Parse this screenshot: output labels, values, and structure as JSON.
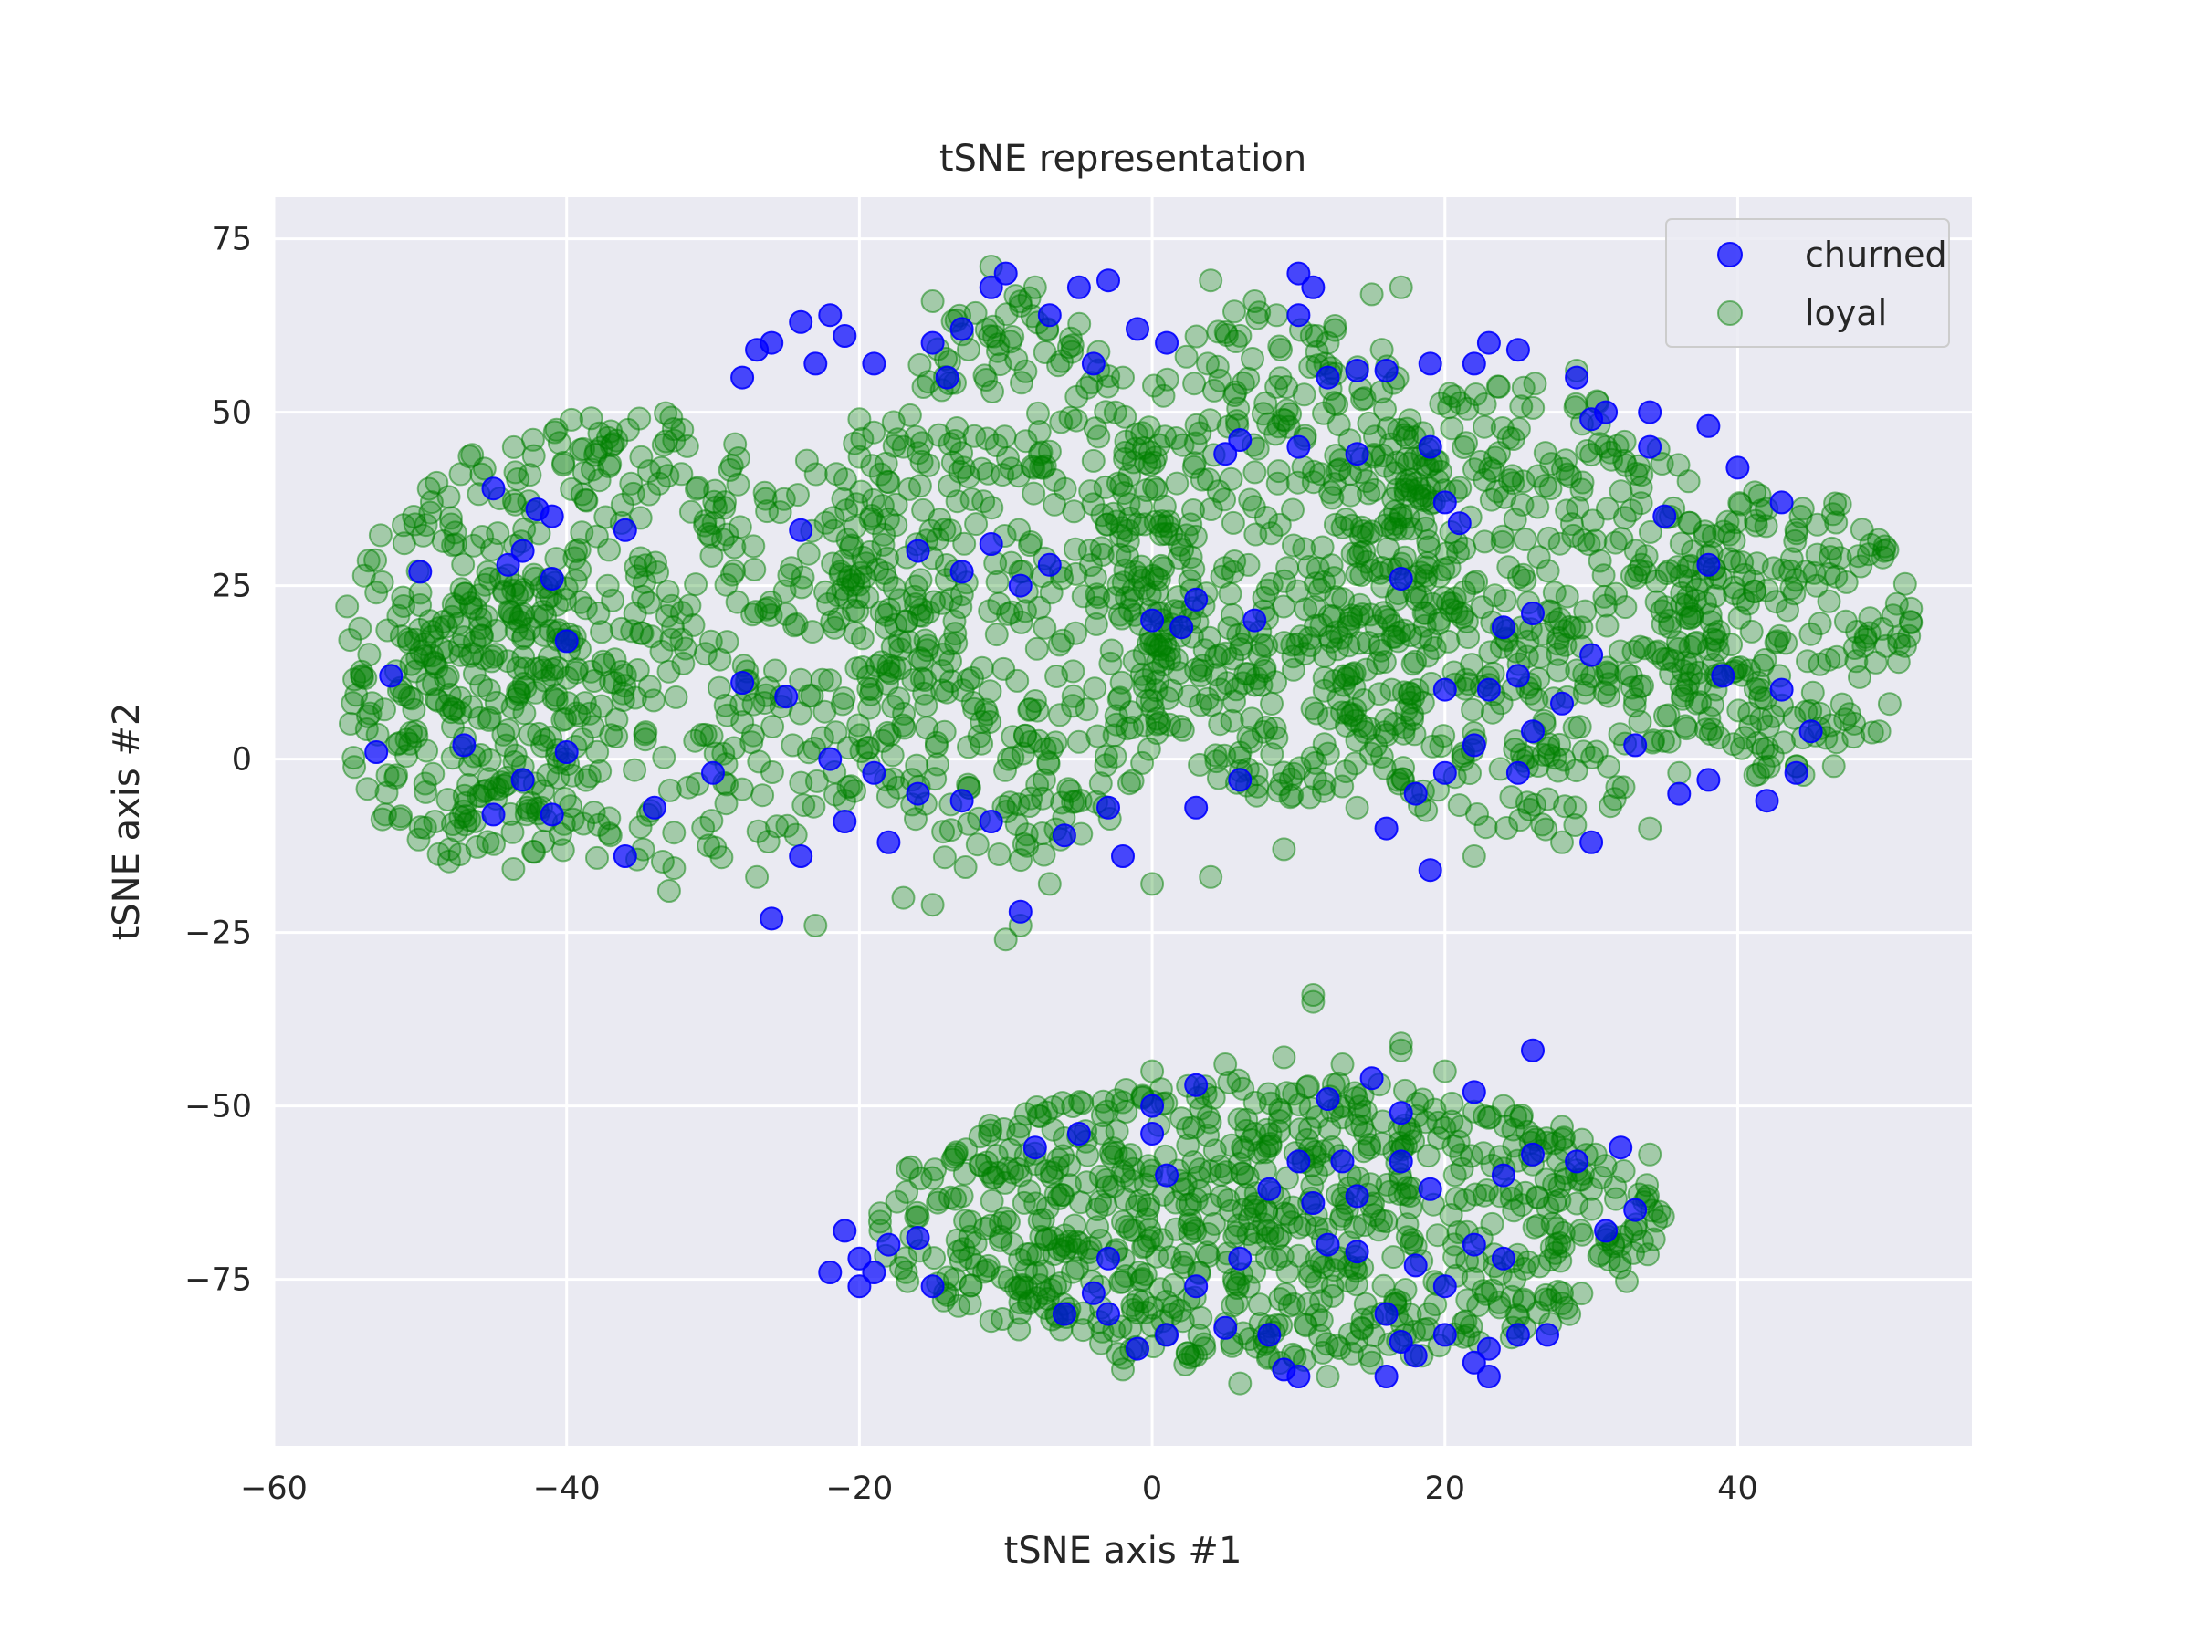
{
  "chart_data": {
    "type": "scatter",
    "title": "tSNE representation",
    "xlabel": "tSNE axis #1",
    "ylabel": "tSNE axis #2",
    "xlim": [
      -60,
      56
    ],
    "ylim": [
      -99,
      81
    ],
    "xticks": [
      -60,
      -40,
      -20,
      0,
      20,
      40
    ],
    "xtick_labels": [
      "−60",
      "−40",
      "−20",
      "0",
      "20",
      "40"
    ],
    "yticks": [
      75,
      50,
      25,
      0,
      -25,
      -50,
      -75
    ],
    "ytick_labels": [
      "75",
      "50",
      "25",
      "0",
      "−25",
      "−50",
      "−75"
    ],
    "grid": true,
    "background": "#eaeaf2",
    "legend_position": "top-right",
    "legend": [
      {
        "label": "churned",
        "color": "#0000ff",
        "alpha": 0.7
      },
      {
        "label": "loyal",
        "color": "#008000",
        "alpha": 0.3
      }
    ],
    "series": [
      {
        "name": "churned",
        "color": "#0000ff",
        "alpha": 0.7,
        "points": [
          [
            -22,
            64
          ],
          [
            -24,
            63
          ],
          [
            -26,
            60
          ],
          [
            -21,
            61
          ],
          [
            -15,
            60
          ],
          [
            -13,
            62
          ],
          [
            -11,
            68
          ],
          [
            -10,
            70
          ],
          [
            -7,
            64
          ],
          [
            -5,
            68
          ],
          [
            -3,
            69
          ],
          [
            -1,
            62
          ],
          [
            1,
            60
          ],
          [
            -4,
            57
          ],
          [
            -14,
            55
          ],
          [
            -19,
            57
          ],
          [
            -23,
            57
          ],
          [
            -27,
            59
          ],
          [
            -28,
            55
          ],
          [
            -24,
            33
          ],
          [
            -16,
            30
          ],
          [
            -13,
            27
          ],
          [
            -11,
            31
          ],
          [
            -9,
            25
          ],
          [
            -7,
            28
          ],
          [
            -45,
            39
          ],
          [
            -42,
            36
          ],
          [
            -41,
            35
          ],
          [
            -44,
            28
          ],
          [
            -41,
            26
          ],
          [
            -36,
            33
          ],
          [
            -40,
            17
          ],
          [
            -50,
            27
          ],
          [
            -43,
            30
          ],
          [
            -53,
            1
          ],
          [
            -52,
            12
          ],
          [
            -47,
            2
          ],
          [
            -43,
            -3
          ],
          [
            -41,
            -8
          ],
          [
            -45,
            -8
          ],
          [
            -40,
            1
          ],
          [
            -36,
            -14
          ],
          [
            -34,
            -7
          ],
          [
            -30,
            -2
          ],
          [
            -28,
            11
          ],
          [
            -25,
            9
          ],
          [
            -22,
            0
          ],
          [
            -19,
            -2
          ],
          [
            -18,
            -12
          ],
          [
            -16,
            -5
          ],
          [
            -13,
            -6
          ],
          [
            -11,
            -9
          ],
          [
            -9,
            -22
          ],
          [
            -6,
            -11
          ],
          [
            -3,
            -7
          ],
          [
            -2,
            -14
          ],
          [
            3,
            -7
          ],
          [
            6,
            -3
          ],
          [
            -26,
            -23
          ],
          [
            -24,
            -14
          ],
          [
            -21,
            -9
          ],
          [
            10,
            70
          ],
          [
            11,
            68
          ],
          [
            10,
            64
          ],
          [
            12,
            55
          ],
          [
            14,
            56
          ],
          [
            16,
            56
          ],
          [
            19,
            57
          ],
          [
            22,
            57
          ],
          [
            23,
            60
          ],
          [
            25,
            59
          ],
          [
            29,
            55
          ],
          [
            30,
            49
          ],
          [
            31,
            50
          ],
          [
            34,
            45
          ],
          [
            34,
            50
          ],
          [
            38,
            48
          ],
          [
            40,
            42
          ],
          [
            43,
            37
          ],
          [
            35,
            35
          ],
          [
            38,
            28
          ],
          [
            39,
            12
          ],
          [
            43,
            10
          ],
          [
            45,
            4
          ],
          [
            44,
            -2
          ],
          [
            42,
            -6
          ],
          [
            38,
            -3
          ],
          [
            36,
            -5
          ],
          [
            33,
            2
          ],
          [
            30,
            15
          ],
          [
            28,
            8
          ],
          [
            26,
            4
          ],
          [
            25,
            -2
          ],
          [
            22,
            2
          ],
          [
            20,
            -2
          ],
          [
            18,
            -5
          ],
          [
            16,
            -10
          ],
          [
            19,
            -16
          ],
          [
            30,
            -12
          ],
          [
            26,
            21
          ],
          [
            24,
            19
          ],
          [
            25,
            12
          ],
          [
            23,
            10
          ],
          [
            20,
            10
          ],
          [
            17,
            26
          ],
          [
            19,
            45
          ],
          [
            21,
            34
          ],
          [
            20,
            37
          ],
          [
            14,
            44
          ],
          [
            10,
            45
          ],
          [
            6,
            46
          ],
          [
            5,
            44
          ],
          [
            3,
            23
          ],
          [
            7,
            20
          ],
          [
            2,
            19
          ],
          [
            0,
            20
          ],
          [
            -21,
            -68
          ],
          [
            -20,
            -72
          ],
          [
            -19,
            -74
          ],
          [
            -20,
            -76
          ],
          [
            -22,
            -74
          ],
          [
            -18,
            -70
          ],
          [
            -16,
            -69
          ],
          [
            -15,
            -76
          ],
          [
            -8,
            -56
          ],
          [
            -5,
            -54
          ],
          [
            -3,
            -72
          ],
          [
            -4,
            -77
          ],
          [
            -6,
            -80
          ],
          [
            0,
            -50
          ],
          [
            0,
            -54
          ],
          [
            1,
            -60
          ],
          [
            3,
            -47
          ],
          [
            8,
            -62
          ],
          [
            10,
            -58
          ],
          [
            11,
            -64
          ],
          [
            13,
            -58
          ],
          [
            14,
            -63
          ],
          [
            15,
            -46
          ],
          [
            12,
            -49
          ],
          [
            17,
            -51
          ],
          [
            17,
            -58
          ],
          [
            19,
            -62
          ],
          [
            22,
            -48
          ],
          [
            24,
            -60
          ],
          [
            26,
            -42
          ],
          [
            26,
            -57
          ],
          [
            29,
            -58
          ],
          [
            32,
            -56
          ],
          [
            33,
            -65
          ],
          [
            31,
            -68
          ],
          [
            24,
            -72
          ],
          [
            22,
            -70
          ],
          [
            20,
            -76
          ],
          [
            18,
            -73
          ],
          [
            16,
            -80
          ],
          [
            17,
            -84
          ],
          [
            18,
            -86
          ],
          [
            20,
            -83
          ],
          [
            22,
            -87
          ],
          [
            23,
            -85
          ],
          [
            25,
            -83
          ],
          [
            27,
            -83
          ],
          [
            23,
            -89
          ],
          [
            16,
            -89
          ],
          [
            10,
            -89
          ],
          [
            9,
            -88
          ],
          [
            8,
            -83
          ],
          [
            5,
            -82
          ],
          [
            3,
            -76
          ],
          [
            1,
            -83
          ],
          [
            -1,
            -85
          ],
          [
            -3,
            -80
          ],
          [
            12,
            -70
          ],
          [
            14,
            -71
          ],
          [
            6,
            -72
          ]
        ]
      },
      {
        "name": "loyal",
        "color": "#008000",
        "alpha": 0.3,
        "regions": [
          {
            "cx": -35,
            "cy": 17,
            "rx": 20,
            "ry": 33,
            "n": 520
          },
          {
            "cx": -10,
            "cy": 25,
            "rx": 12,
            "ry": 42,
            "n": 430
          },
          {
            "cx": 9,
            "cy": 30,
            "rx": 12,
            "ry": 36,
            "n": 420
          },
          {
            "cx": 25,
            "cy": 22,
            "rx": 14,
            "ry": 33,
            "n": 440
          },
          {
            "cx": 43,
            "cy": 18,
            "rx": 9,
            "ry": 21,
            "n": 200
          },
          {
            "cx": -45,
            "cy": 5,
            "rx": 10,
            "ry": 22,
            "n": 150
          },
          {
            "cx": 8,
            "cy": -67,
            "rx": 27,
            "ry": 21,
            "n": 780
          }
        ],
        "points": [
          [
            11,
            -34
          ],
          [
            11,
            -35
          ],
          [
            17,
            -41
          ],
          [
            17,
            -42
          ],
          [
            51,
            14
          ],
          [
            50,
            30
          ],
          [
            -55,
            22
          ],
          [
            -54,
            12
          ],
          [
            -53,
            24
          ],
          [
            -10,
            -26
          ],
          [
            -9,
            -24
          ],
          [
            -23,
            -24
          ],
          [
            12,
            60
          ],
          [
            15,
            67
          ],
          [
            17,
            68
          ],
          [
            4,
            69
          ],
          [
            7,
            66
          ],
          [
            -8,
            68
          ],
          [
            -11,
            71
          ],
          [
            -15,
            66
          ],
          [
            -2,
            55
          ],
          [
            -20,
            49
          ],
          [
            29,
            56
          ],
          [
            31,
            45
          ],
          [
            44,
            33
          ],
          [
            47,
            29
          ],
          [
            48,
            16
          ],
          [
            -48,
            -13
          ],
          [
            -49,
            -9
          ],
          [
            -37,
            -11
          ],
          [
            -33,
            -19
          ],
          [
            -27,
            -17
          ],
          [
            -17,
            -20
          ],
          [
            -15,
            -21
          ],
          [
            -7,
            -18
          ],
          [
            0,
            -18
          ],
          [
            4,
            -17
          ],
          [
            9,
            -13
          ],
          [
            14,
            -7
          ],
          [
            22,
            -14
          ],
          [
            28,
            -12
          ],
          [
            34,
            -10
          ],
          [
            36,
            -2
          ],
          [
            30,
            -62
          ],
          [
            34,
            -57
          ],
          [
            -9,
            -60
          ],
          [
            -6,
            -71
          ],
          [
            -11,
            -81
          ],
          [
            -12,
            -73
          ],
          [
            -16,
            -66
          ],
          [
            -13,
            -63
          ],
          [
            -2,
            -88
          ],
          [
            3,
            -86
          ],
          [
            6,
            -90
          ],
          [
            12,
            -89
          ],
          [
            15,
            -87
          ],
          [
            0,
            -45
          ],
          [
            5,
            -44
          ],
          [
            9,
            -43
          ],
          [
            13,
            -44
          ],
          [
            20,
            -45
          ],
          [
            24,
            -50
          ],
          [
            28,
            -53
          ],
          [
            32,
            -70
          ],
          [
            28,
            -77
          ]
        ]
      }
    ]
  }
}
